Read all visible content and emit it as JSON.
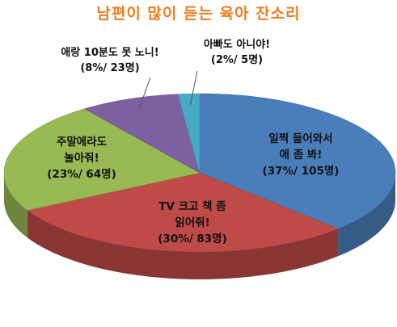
{
  "chart_data": {
    "type": "pie",
    "title": "남편이 많이 듣는 육아 잔소리",
    "slices": [
      {
        "label_lines": [
          "일찍 들어와서",
          "애 좀 봐!"
        ],
        "value_text": "(37%/ 105명)",
        "percent": 37,
        "count": 105,
        "color": "#4a7ebb"
      },
      {
        "label_lines": [
          "TV 크고 책 좀",
          "읽어줘!"
        ],
        "value_text": "(30%/ 83명)",
        "percent": 30,
        "count": 83,
        "color": "#be4b48"
      },
      {
        "label_lines": [
          "주말에라도",
          "놀아줘!"
        ],
        "value_text": "(23%/ 64명)",
        "percent": 23,
        "count": 64,
        "color": "#98b954"
      },
      {
        "label_lines": [
          "애랑 10분도 못 노니!"
        ],
        "value_text": "(8%/ 23명)",
        "percent": 8,
        "count": 23,
        "color": "#7d60a0"
      },
      {
        "label_lines": [
          "아빠도 아니야!"
        ],
        "value_text": "(2%/ 5명)",
        "percent": 2,
        "count": 5,
        "color": "#46aac5"
      }
    ]
  }
}
